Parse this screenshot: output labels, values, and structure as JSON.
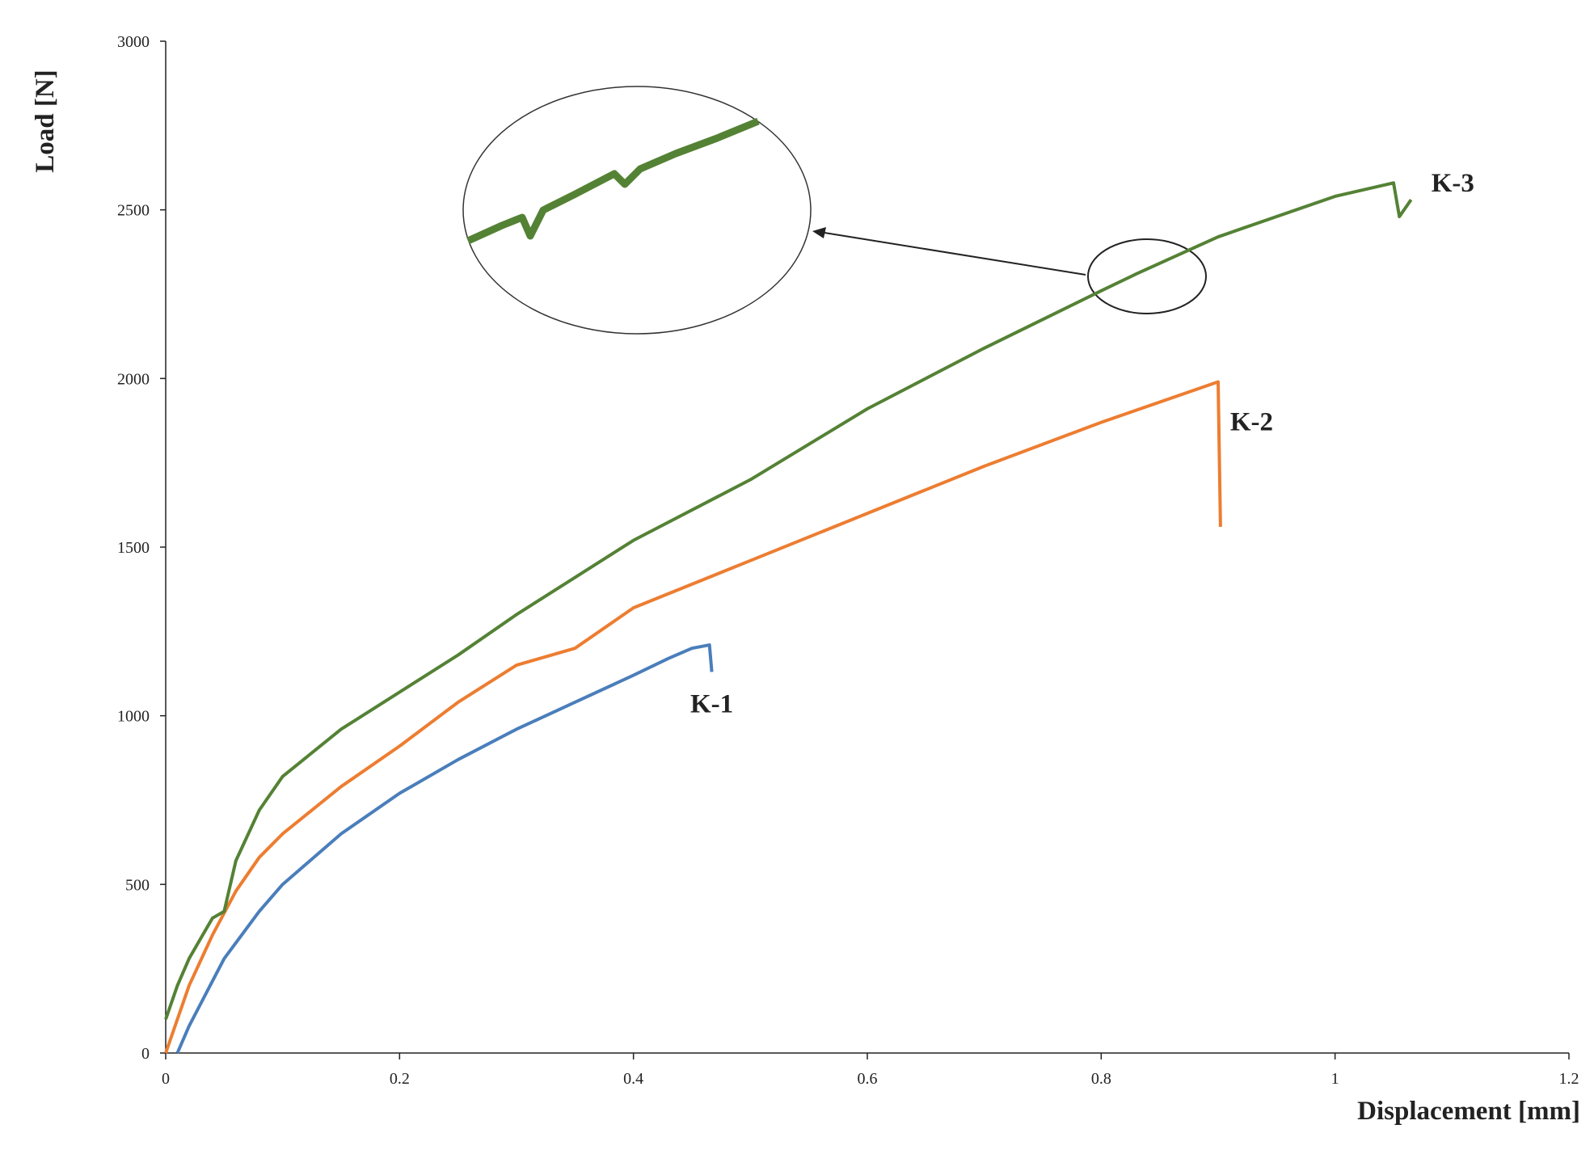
{
  "chart_data": {
    "type": "line",
    "xlabel": "Displacement [mm]",
    "ylabel": "Load [N]",
    "xlim": [
      0,
      1.2
    ],
    "xticks": [
      0,
      0.2,
      0.4,
      0.6,
      0.8,
      1,
      1.2
    ],
    "ylim": [
      0,
      3000
    ],
    "yticks": [
      0,
      500,
      1000,
      1500,
      2000,
      2500,
      3000
    ],
    "series": [
      {
        "name": "K-1",
        "color": "#4a7ebb",
        "x": [
          0.01,
          0.02,
          0.05,
          0.08,
          0.1,
          0.15,
          0.2,
          0.25,
          0.3,
          0.35,
          0.4,
          0.43,
          0.45,
          0.465,
          0.467
        ],
        "values": [
          0,
          80,
          280,
          420,
          500,
          650,
          770,
          870,
          960,
          1040,
          1120,
          1170,
          1200,
          1210,
          1130
        ]
      },
      {
        "name": "K-2",
        "color": "#ed7d31",
        "x": [
          0,
          0.01,
          0.02,
          0.04,
          0.06,
          0.08,
          0.1,
          0.15,
          0.2,
          0.25,
          0.3,
          0.35,
          0.4,
          0.5,
          0.6,
          0.7,
          0.8,
          0.9,
          0.902
        ],
        "values": [
          0,
          100,
          200,
          350,
          480,
          580,
          650,
          790,
          910,
          1040,
          1150,
          1200,
          1320,
          1460,
          1600,
          1740,
          1870,
          1990,
          1560
        ]
      },
      {
        "name": "K-3",
        "color": "#548235",
        "x": [
          0,
          0.01,
          0.02,
          0.04,
          0.05,
          0.06,
          0.08,
          0.1,
          0.15,
          0.2,
          0.25,
          0.3,
          0.35,
          0.4,
          0.5,
          0.6,
          0.7,
          0.8,
          0.83,
          0.9,
          1.0,
          1.05,
          1.055,
          1.065
        ],
        "values": [
          100,
          200,
          280,
          400,
          420,
          570,
          720,
          820,
          960,
          1070,
          1180,
          1300,
          1410,
          1520,
          1700,
          1910,
          2090,
          2260,
          2310,
          2420,
          2540,
          2580,
          2480,
          2530
        ]
      }
    ]
  }
}
